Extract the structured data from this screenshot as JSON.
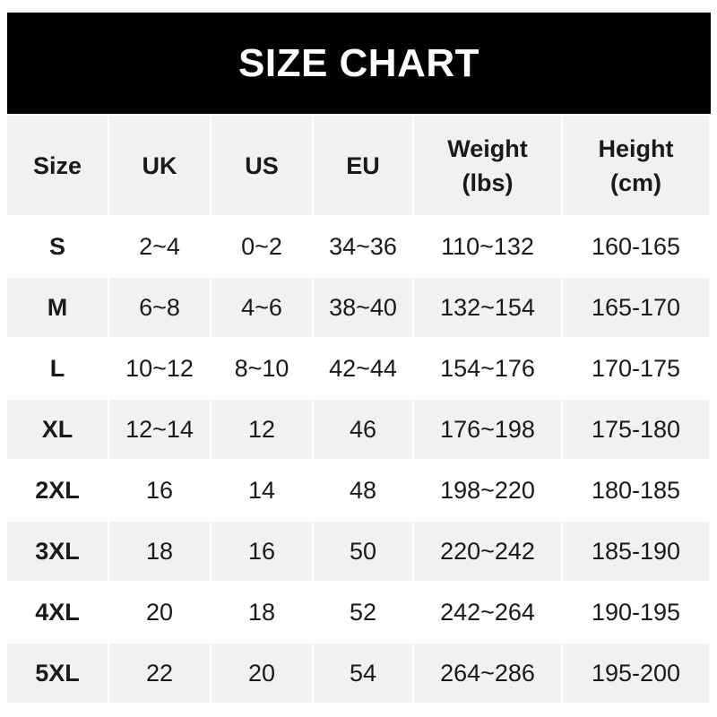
{
  "title": "SIZE CHART",
  "headers": [
    "Size",
    "UK",
    "US",
    "EU",
    "Weight\n(lbs)",
    "Height\n(cm)"
  ],
  "rows": [
    [
      "S",
      "2~4",
      "0~2",
      "34~36",
      "110~132",
      "160-165"
    ],
    [
      "M",
      "6~8",
      "4~6",
      "38~40",
      "132~154",
      "165-170"
    ],
    [
      "L",
      "10~12",
      "8~10",
      "42~44",
      "154~176",
      "170-175"
    ],
    [
      "XL",
      "12~14",
      "12",
      "46",
      "176~198",
      "175-180"
    ],
    [
      "2XL",
      "16",
      "14",
      "48",
      "198~220",
      "180-185"
    ],
    [
      "3XL",
      "18",
      "16",
      "50",
      "220~242",
      "185-190"
    ],
    [
      "4XL",
      "20",
      "18",
      "52",
      "242~264",
      "190-195"
    ],
    [
      "5XL",
      "22",
      "20",
      "54",
      "264~286",
      "195-200"
    ]
  ],
  "colors": {
    "title_bg": "#000000",
    "title_text": "#ffffff",
    "stripe": "#f1f1f1",
    "text": "#1a1a1a"
  }
}
